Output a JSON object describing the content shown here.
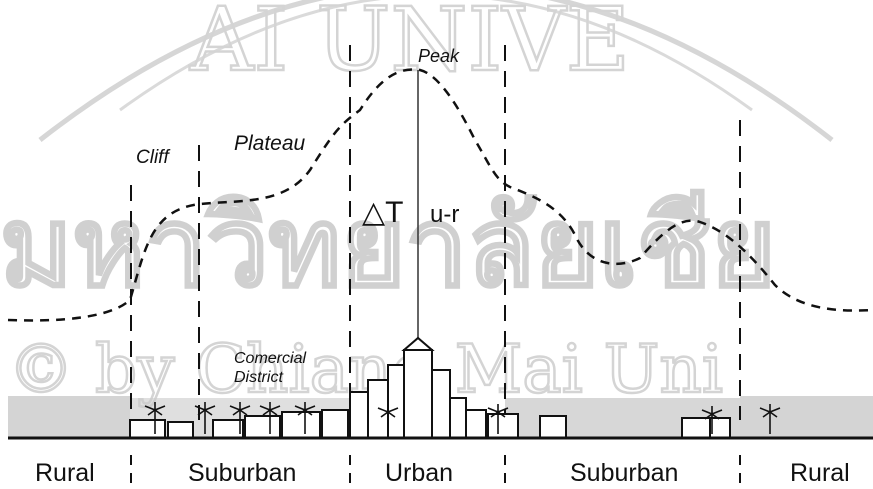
{
  "labels": {
    "peak": "Peak",
    "plateau": "Plateau",
    "cliff": "Cliff",
    "delta_t_symbol": "△T",
    "delta_t_suffix": "u-r",
    "district_line1": "Comercial",
    "district_line2": "District"
  },
  "zones": [
    "Rural",
    "Suburban",
    "Urban",
    "Suburban",
    "Rural"
  ],
  "watermark": {
    "arc_text": "AI UNIVE",
    "thai_text": "มหาวิทยาลัยเชีย",
    "copyright_text": "© by Chiang Mai Uni"
  },
  "colors": {
    "line": "#111111",
    "watermark": "#d0d0d0",
    "vegetation": "#bdbdbd"
  }
}
